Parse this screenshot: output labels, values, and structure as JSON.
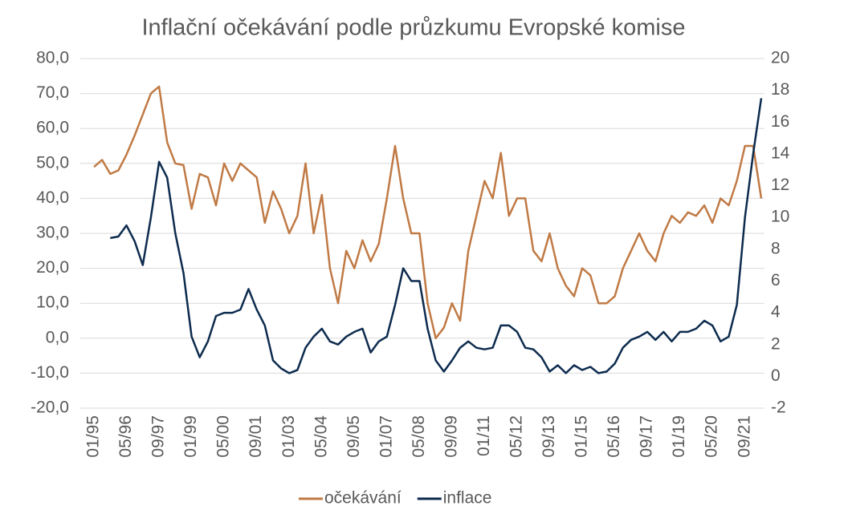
{
  "chart_data": {
    "type": "line",
    "title": "Inflační očekávání podle průzkumu Evropské komise",
    "categories": [
      "01/95",
      null,
      null,
      null,
      "05/96",
      null,
      null,
      null,
      "09/97",
      null,
      null,
      null,
      "01/99",
      null,
      null,
      null,
      "05/00",
      null,
      null,
      null,
      "09/01",
      null,
      null,
      null,
      "01/03",
      null,
      null,
      null,
      "05/04",
      null,
      null,
      null,
      "09/05",
      null,
      null,
      null,
      "01/07",
      null,
      null,
      null,
      "05/08",
      null,
      null,
      null,
      "09/09",
      null,
      null,
      null,
      "01/11",
      null,
      null,
      null,
      "05/12",
      null,
      null,
      null,
      "09/13",
      null,
      null,
      null,
      "01/15",
      null,
      null,
      null,
      "05/16",
      null,
      null,
      null,
      "09/17",
      null,
      null,
      null,
      "01/19",
      null,
      null,
      null,
      "05/20",
      null,
      null,
      null,
      "09/21",
      null,
      null
    ],
    "series": [
      {
        "name": "očekávání",
        "color": "#c07a45",
        "axis": "y",
        "values": [
          49,
          51,
          47,
          48,
          52.5,
          58,
          64,
          70,
          72,
          56,
          50,
          49.5,
          37,
          47,
          46,
          38,
          50,
          45,
          50,
          48,
          46,
          33,
          42,
          37,
          30,
          35,
          50,
          30,
          41,
          20,
          10,
          25,
          20,
          28,
          22,
          27,
          40,
          55,
          40,
          30,
          30,
          10,
          0,
          3,
          10,
          5,
          25,
          35,
          45,
          40,
          53,
          35,
          40,
          40,
          25,
          22,
          30,
          20,
          15,
          12,
          20,
          18,
          10,
          10,
          12,
          20,
          25,
          30,
          25,
          22,
          30,
          35,
          33,
          36,
          35,
          38,
          33,
          40,
          38,
          45,
          55,
          55,
          40
        ]
      },
      {
        "name": "inflace",
        "color": "#0d2b4e",
        "axis": "y2",
        "values": [
          null,
          null,
          8.7,
          8.8,
          9.5,
          8.5,
          7,
          10,
          13.5,
          12.5,
          9,
          6.5,
          2.5,
          1.2,
          2.2,
          3.8,
          4,
          4,
          4.2,
          5.5,
          4.2,
          3.2,
          1,
          0.5,
          0.2,
          0.4,
          1.8,
          2.5,
          3,
          2.2,
          2,
          2.5,
          2.8,
          3,
          1.5,
          2.2,
          2.5,
          4.5,
          6.8,
          6,
          6,
          3,
          1,
          0.3,
          1,
          1.8,
          2.2,
          1.8,
          1.7,
          1.8,
          3.2,
          3.2,
          2.8,
          1.8,
          1.7,
          1.2,
          0.3,
          0.7,
          0.2,
          0.7,
          0.4,
          0.6,
          0.2,
          0.3,
          0.8,
          1.8,
          2.3,
          2.5,
          2.8,
          2.3,
          2.8,
          2.2,
          2.8,
          2.8,
          3,
          3.5,
          3.2,
          2.2,
          2.5,
          4.5,
          10,
          14,
          17.5
        ]
      }
    ],
    "ylim": [
      -20,
      80
    ],
    "yticks": [
      {
        "value": -20,
        "label": "-20,0"
      },
      {
        "value": -10,
        "label": "-10,0"
      },
      {
        "value": 0,
        "label": "0,0"
      },
      {
        "value": 10,
        "label": "10,0"
      },
      {
        "value": 20,
        "label": "20,0"
      },
      {
        "value": 30,
        "label": "30,0"
      },
      {
        "value": 40,
        "label": "40,0"
      },
      {
        "value": 50,
        "label": "50,0"
      },
      {
        "value": 60,
        "label": "60,0"
      },
      {
        "value": 70,
        "label": "70,0"
      },
      {
        "value": 80,
        "label": "80,0"
      }
    ],
    "y2lim": [
      -2,
      20
    ],
    "y2ticks": [
      -2,
      0,
      2,
      4,
      6,
      8,
      10,
      12,
      14,
      16,
      18,
      20
    ],
    "grid": true,
    "legend": "bottom"
  }
}
